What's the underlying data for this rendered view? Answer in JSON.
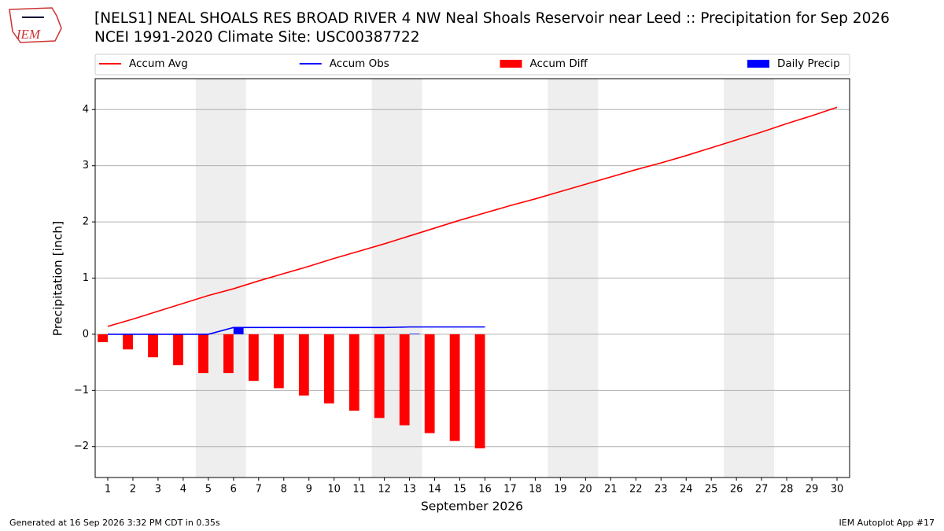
{
  "chart_data": {
    "type": "line",
    "title": "[NELS1] NEAL SHOALS RES BROAD RIVER 4 NW Neal Shoals Reservoir near Leed :: Precipitation for Sep 2026",
    "subtitle": "NCEI 1991-2020 Climate Site: USC00387722",
    "logo_text": "IEM",
    "ylabel": "Precipitation [inch]",
    "xlabel": "September 2026",
    "footer_left": "Generated at 16 Sep 2026 3:32 PM CDT in 0.35s",
    "footer_right": "IEM Autoplot App #17",
    "x": [
      1,
      2,
      3,
      4,
      5,
      6,
      7,
      8,
      9,
      10,
      11,
      12,
      13,
      14,
      15,
      16,
      17,
      18,
      19,
      20,
      21,
      22,
      23,
      24,
      25,
      26,
      27,
      28,
      29,
      30
    ],
    "xlim": [
      0.5,
      30.5
    ],
    "xticks": [
      1,
      2,
      3,
      4,
      5,
      6,
      7,
      8,
      9,
      10,
      11,
      12,
      13,
      14,
      15,
      16,
      17,
      18,
      19,
      20,
      21,
      22,
      23,
      24,
      25,
      26,
      27,
      28,
      29,
      30
    ],
    "ylim": [
      -2.55,
      4.55
    ],
    "yticks": [
      {
        "value": -2,
        "label": "−2"
      },
      {
        "value": -1,
        "label": "−1"
      },
      0,
      1,
      2,
      3,
      4
    ],
    "grid": true,
    "weekend_spans": [
      [
        4.5,
        6.5
      ],
      [
        11.5,
        13.5
      ],
      [
        18.5,
        20.5
      ],
      [
        25.5,
        27.5
      ]
    ],
    "weekend_color": "#eeeeee",
    "legend_position": "top",
    "series": [
      {
        "name": "Accum Avg",
        "kind": "line",
        "color": "#ff0000",
        "values": [
          0.14,
          0.27,
          0.41,
          0.55,
          0.69,
          0.81,
          0.95,
          1.08,
          1.21,
          1.35,
          1.48,
          1.61,
          1.75,
          1.89,
          2.03,
          2.16,
          2.29,
          2.41,
          2.54,
          2.67,
          2.8,
          2.93,
          3.05,
          3.18,
          3.32,
          3.46,
          3.6,
          3.75,
          3.89,
          4.04
        ]
      },
      {
        "name": "Accum Obs",
        "kind": "line",
        "color": "#0000ff",
        "values": [
          0,
          0,
          0,
          0,
          0,
          0.12,
          0.12,
          0.12,
          0.12,
          0.12,
          0.12,
          0.12,
          0.13,
          0.13,
          0.13,
          0.13,
          null,
          null,
          null,
          null,
          null,
          null,
          null,
          null,
          null,
          null,
          null,
          null,
          null,
          null
        ]
      },
      {
        "name": "Accum Diff",
        "kind": "bar",
        "side": "left",
        "color": "#ff0000",
        "values": [
          -0.14,
          -0.27,
          -0.41,
          -0.55,
          -0.69,
          -0.69,
          -0.83,
          -0.96,
          -1.09,
          -1.23,
          -1.36,
          -1.49,
          -1.62,
          -1.76,
          -1.9,
          -2.03,
          null,
          null,
          null,
          null,
          null,
          null,
          null,
          null,
          null,
          null,
          null,
          null,
          null,
          null
        ]
      },
      {
        "name": "Daily Precip",
        "kind": "bar",
        "side": "right",
        "color": "#0000ff",
        "values": [
          0,
          0,
          0,
          0,
          0,
          0.12,
          0,
          0,
          0,
          0,
          0,
          0,
          0.01,
          0,
          0,
          0,
          null,
          null,
          null,
          null,
          null,
          null,
          null,
          null,
          null,
          null,
          null,
          null,
          null,
          null
        ]
      }
    ]
  }
}
